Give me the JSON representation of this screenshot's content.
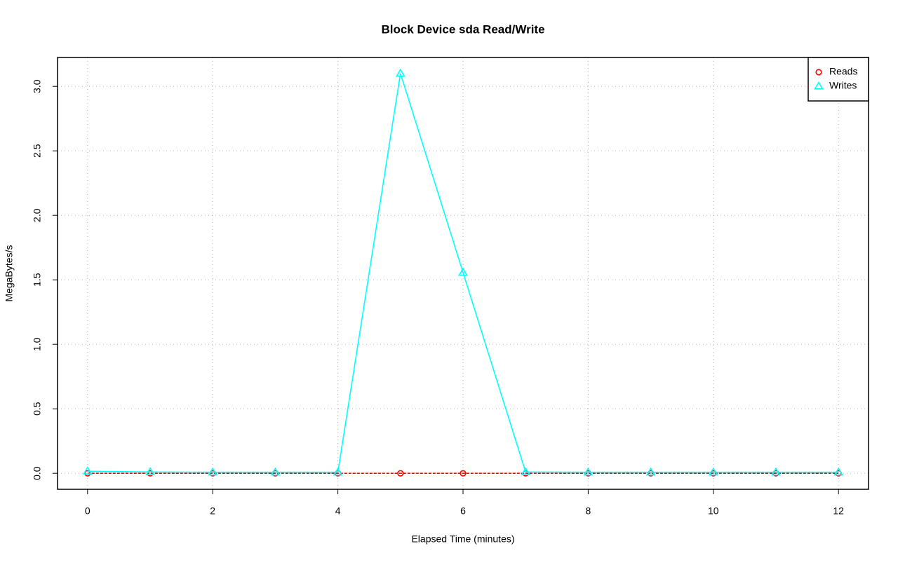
{
  "chart_data": {
    "type": "line",
    "title": "Block Device sda Read/Write",
    "x_label": "Elapsed Time (minutes)",
    "y_label": "MegaBytes/s",
    "x": [
      0,
      1,
      2,
      3,
      4,
      5,
      6,
      7,
      8,
      9,
      10,
      11,
      12
    ],
    "series": [
      {
        "name": "Reads",
        "color": "#ff0000",
        "marker": "circle",
        "linestyle": "dashed",
        "values": [
          0,
          0,
          0,
          0,
          0,
          0,
          0,
          0,
          0,
          0,
          0,
          0,
          0
        ]
      },
      {
        "name": "Writes",
        "color": "#00ffff",
        "marker": "triangle",
        "linestyle": "solid",
        "values": [
          0.016,
          0.01,
          0.008,
          0.008,
          0.008,
          3.1,
          1.557,
          0.01,
          0.008,
          0.008,
          0.008,
          0.008,
          0.008
        ]
      }
    ],
    "xlim": [
      -0.48,
      12.48
    ],
    "ylim": [
      -0.124,
      3.224
    ],
    "xticks": [
      0,
      2,
      4,
      6,
      8,
      10,
      12
    ],
    "yticks": [
      {
        "value": 0,
        "label": "0.0"
      },
      0.5,
      {
        "value": 1,
        "label": "1.0"
      },
      1.5,
      {
        "value": 2,
        "label": "2.0"
      },
      2.5,
      {
        "value": 3,
        "label": "3.0"
      }
    ],
    "grid": true,
    "legend": "topright"
  }
}
